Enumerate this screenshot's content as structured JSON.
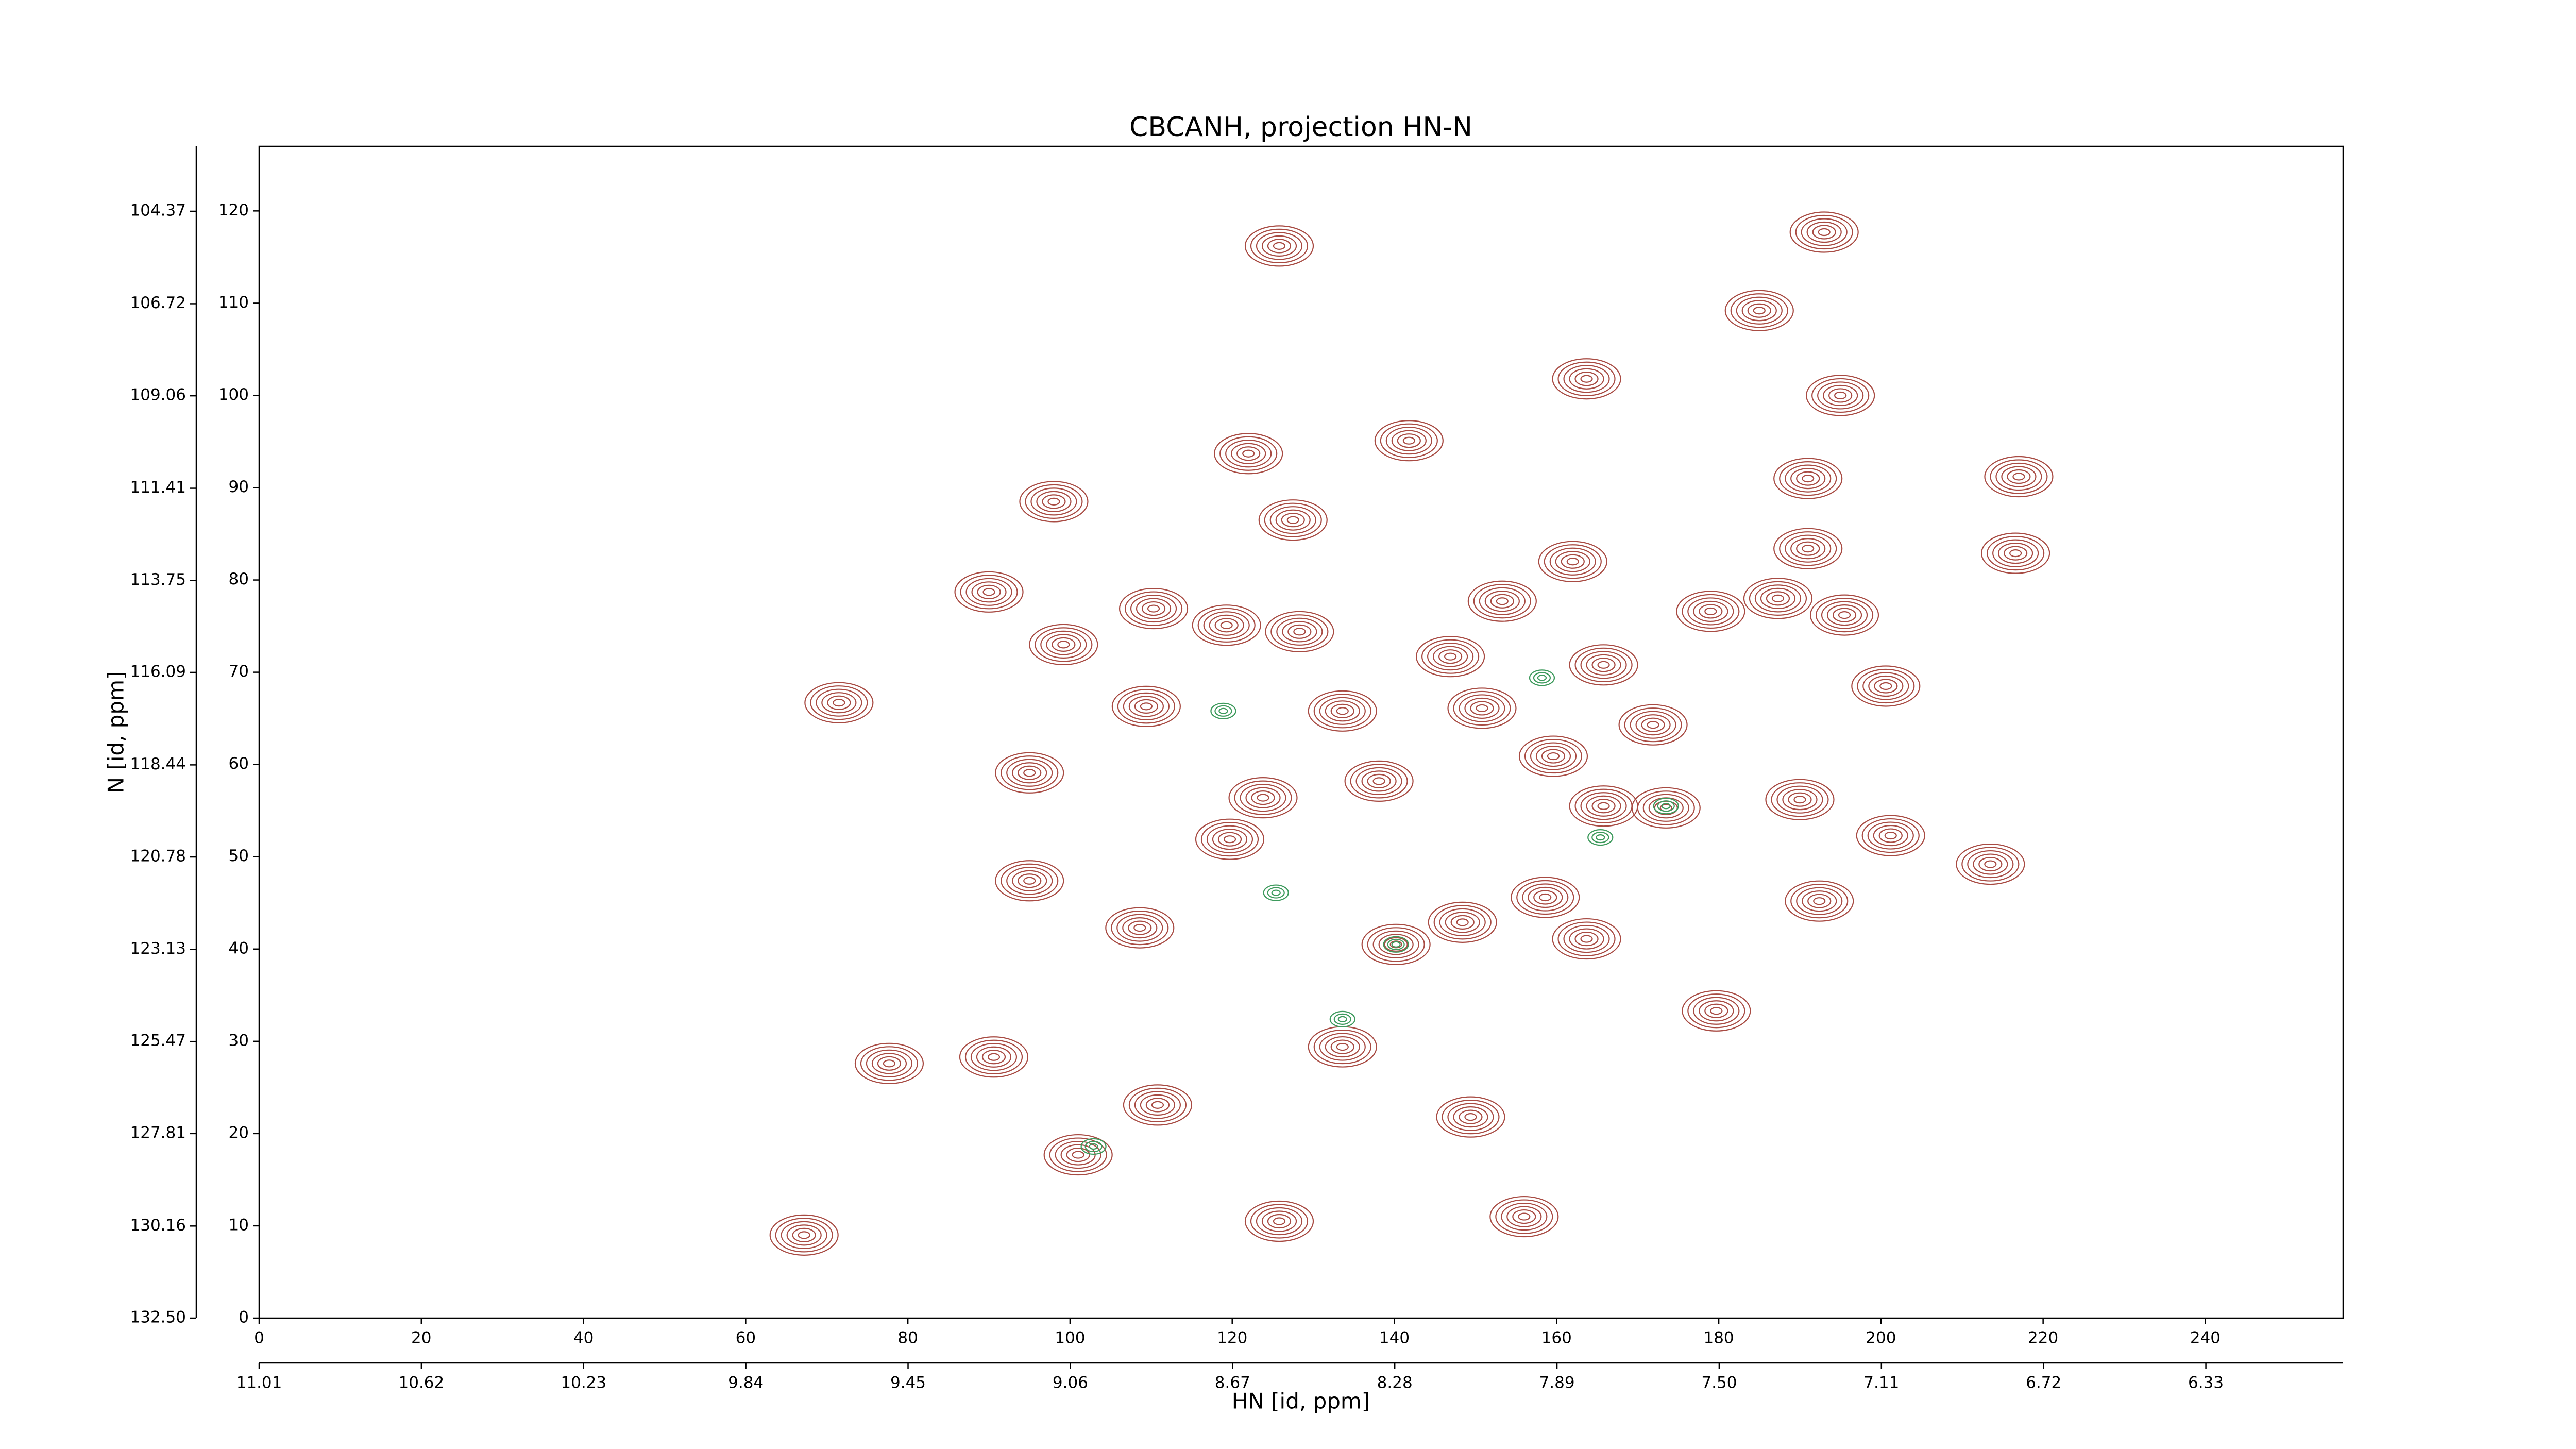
{
  "chart_data": {
    "type": "contour",
    "title": "CBCANH, projection HN-N",
    "xlabel": "HN [id, ppm]",
    "ylabel": "N [id, ppm]",
    "xlim": [
      0,
      257
    ],
    "ylim": [
      0,
      127
    ],
    "xticks": [
      0,
      20,
      40,
      60,
      80,
      100,
      120,
      140,
      160,
      180,
      200,
      220,
      240
    ],
    "yticks": [
      0,
      10,
      20,
      30,
      40,
      50,
      60,
      70,
      80,
      90,
      100,
      110,
      120
    ],
    "x2lim": [
      11.01,
      6.0
    ],
    "x2ticks": [
      11.01,
      10.62,
      10.23,
      9.84,
      9.45,
      9.06,
      8.67,
      8.28,
      7.89,
      {
        "value": 7.5,
        "label": "7.50"
      },
      7.11,
      6.72,
      6.33
    ],
    "y2lim": [
      132.5,
      102.72
    ],
    "y2ticks": [
      {
        "value": 132.5,
        "label": "132.50"
      },
      130.16,
      127.81,
      125.47,
      123.13,
      120.78,
      118.44,
      116.09,
      113.75,
      111.41,
      109.06,
      106.72,
      104.37
    ],
    "series": [
      {
        "color": "#a84b43",
        "x": [
          125.8,
          193,
          185,
          163.7,
          195,
          122,
          141.8,
          98,
          127.5,
          191,
          217,
          216.6,
          191,
          162,
          90,
          110.3,
          119.3,
          128.3,
          153.3,
          179,
          187.3,
          195.5,
          99.2,
          146.9,
          165.8,
          200.6,
          71.5,
          109.4,
          133.6,
          150.8,
          171.9,
          159.6,
          95,
          123.8,
          138.1,
          165.8,
          190,
          173.5,
          119.7,
          201.2,
          213.5,
          95,
          158.6,
          192.4,
          148.4,
          108.6,
          163.7,
          140.2,
          179.7,
          77.7,
          90.6,
          133.6,
          110.8,
          149.4,
          101,
          67.2,
          125.8,
          156
        ],
        "y": [
          116.2,
          117.7,
          109.2,
          101.8,
          100,
          93.7,
          95.1,
          88.5,
          86.5,
          91,
          91.2,
          82.9,
          83.4,
          82,
          78.7,
          76.9,
          75.1,
          74.4,
          77.7,
          76.6,
          78,
          76.2,
          73,
          71.7,
          70.8,
          68.5,
          66.7,
          66.3,
          65.8,
          66.1,
          64.3,
          60.9,
          59.1,
          56.4,
          58.2,
          55.5,
          56.2,
          55.3,
          51.9,
          52.3,
          49.2,
          47.4,
          45.6,
          45.2,
          42.9,
          42.3,
          41.1,
          40.5,
          33.3,
          27.6,
          28.3,
          29.4,
          23.1,
          21.8,
          17.7,
          9,
          10.5,
          11
        ]
      },
      {
        "color": "#3d9a5c",
        "x": [
          118.9,
          173.5,
          158.2,
          133.6,
          102.9,
          125.4,
          165.4,
          140.2
        ],
        "y": [
          65.8,
          55.5,
          69.4,
          32.4,
          18.6,
          46.1,
          52.1,
          40.5
        ]
      }
    ]
  }
}
